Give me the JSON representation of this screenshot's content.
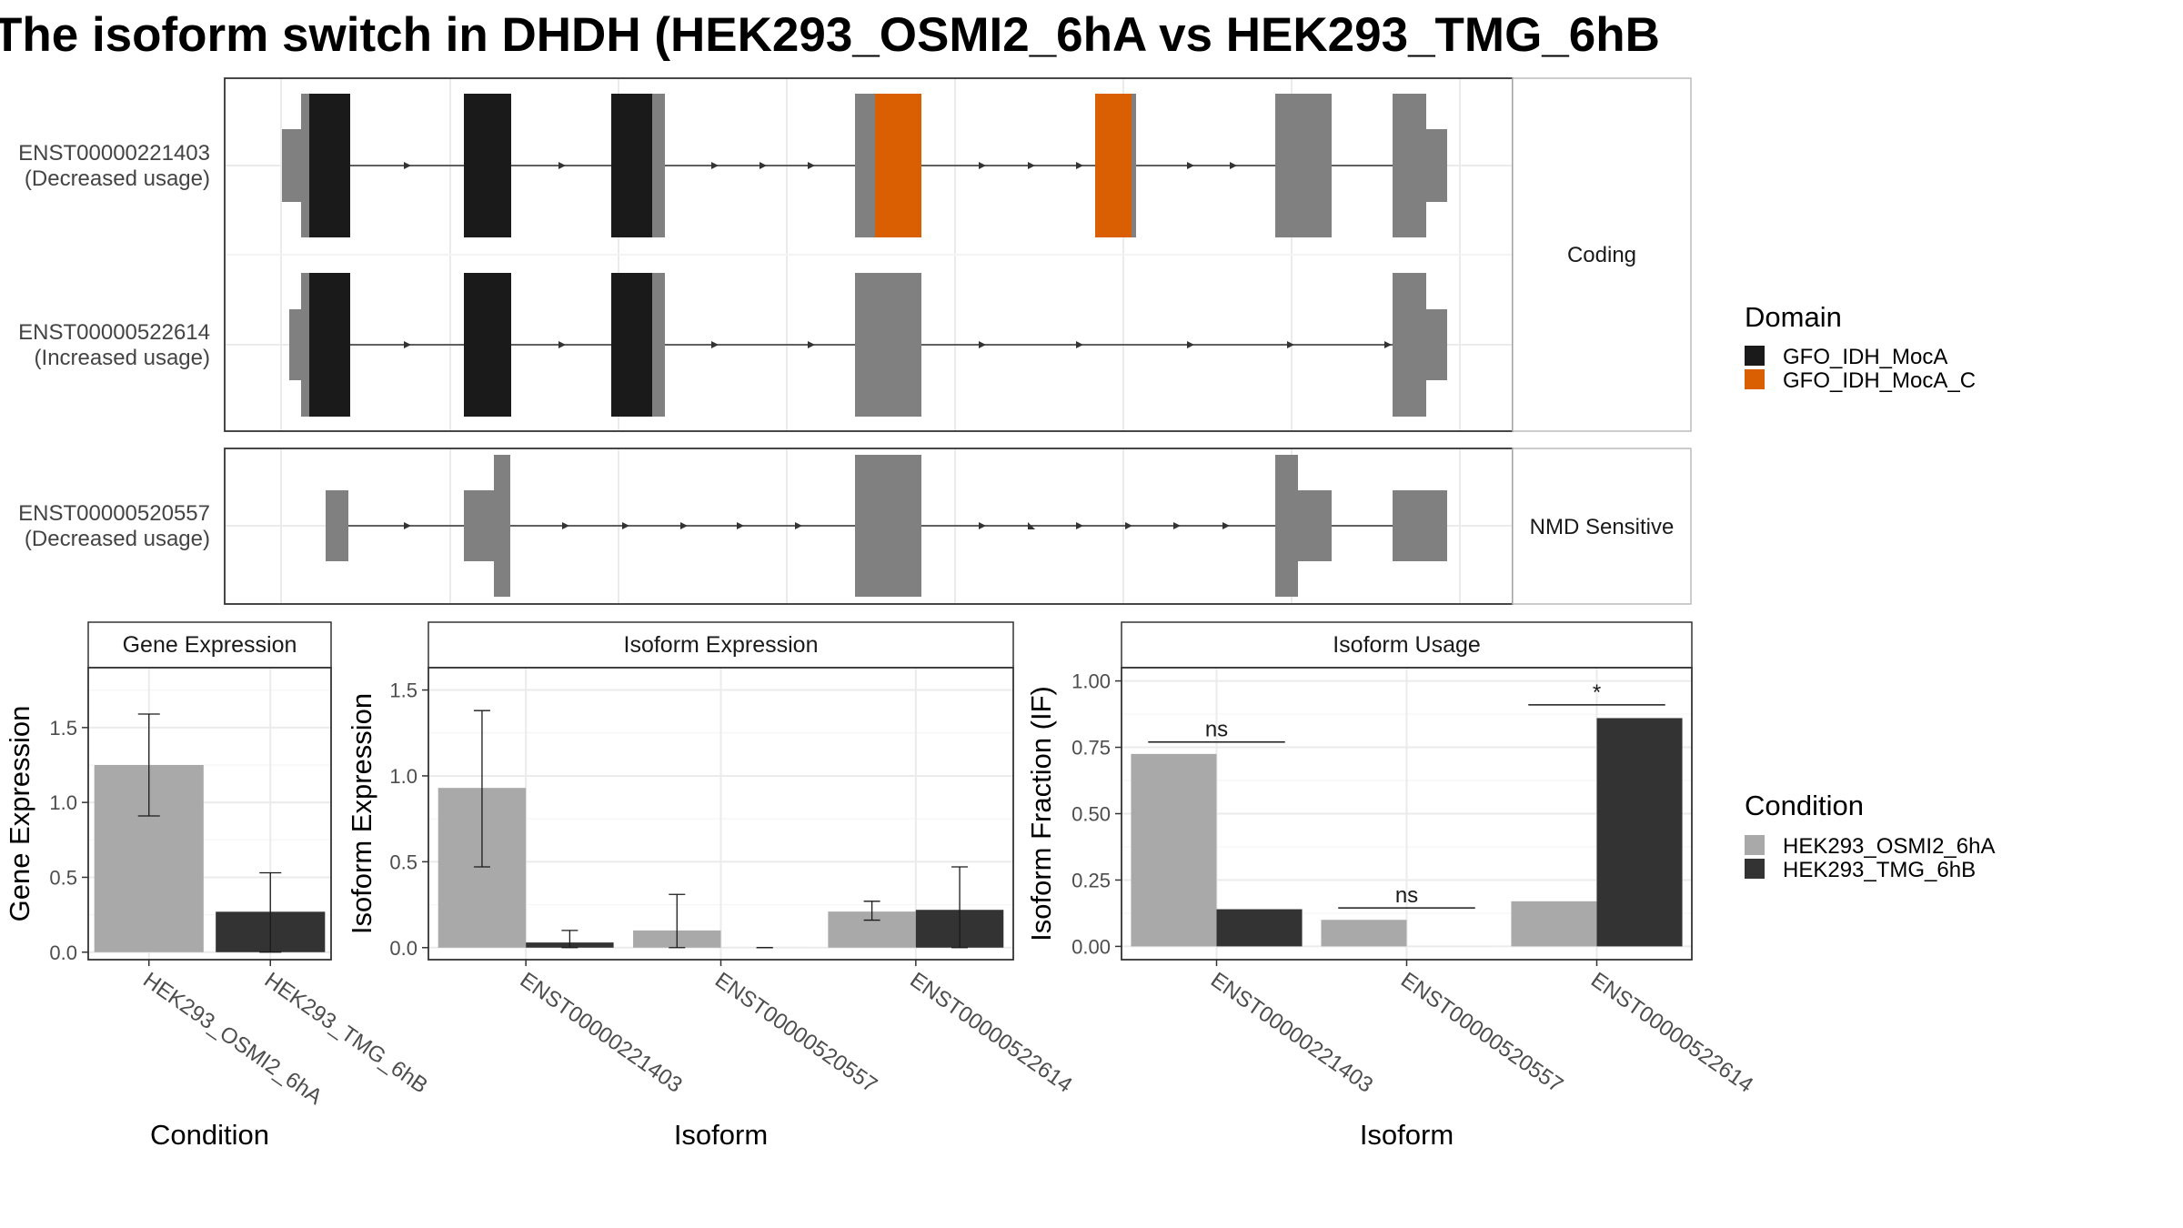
{
  "title": "The isoform switch in DHDH (HEK293_OSMI2_6hA vs HEK293_TMG_6hB",
  "colors": {
    "domain_black": "#1a1a1a",
    "domain_orange": "#d95f02",
    "utr_grey": "#808080",
    "cond_a": "#a9a9a9",
    "cond_b": "#333333",
    "panel_border": "#333333",
    "strip_border": "#bbbbbb",
    "grid": "#ebebeb"
  },
  "structure": {
    "strips": [
      "Coding",
      "NMD Sensitive"
    ],
    "transcripts": [
      {
        "id": "ENST00000221403",
        "usage": "(Decreased usage)",
        "group": "Coding"
      },
      {
        "id": "ENST00000522614",
        "usage": "(Increased usage)",
        "group": "Coding"
      },
      {
        "id": "ENST00000520557",
        "usage": "(Decreased usage)",
        "group": "NMD Sensitive"
      }
    ]
  },
  "legends": {
    "domain": {
      "title": "Domain",
      "items": [
        {
          "label": "GFO_IDH_MocA",
          "color": "#1a1a1a"
        },
        {
          "label": "GFO_IDH_MocA_C",
          "color": "#d95f02"
        }
      ]
    },
    "condition": {
      "title": "Condition",
      "items": [
        {
          "label": "HEK293_OSMI2_6hA",
          "color": "#a9a9a9"
        },
        {
          "label": "HEK293_TMG_6hB",
          "color": "#333333"
        }
      ]
    }
  },
  "chart_data": [
    {
      "type": "bar",
      "title": "Gene Expression",
      "xlabel": "Condition",
      "ylabel": "Gene Expression",
      "ylim": [
        -0.05,
        1.9
      ],
      "yticks": [
        0.0,
        0.5,
        1.0,
        1.5
      ],
      "ytick_labels": [
        "0.0",
        "0.5",
        "1.0",
        "1.5"
      ],
      "categories": [
        "HEK293_OSMI2_6hA",
        "HEK293_TMG_6hB"
      ],
      "values": [
        1.25,
        0.27
      ],
      "err_low": [
        0.91,
        0.0
      ],
      "err_high": [
        1.59,
        0.53
      ]
    },
    {
      "type": "bar",
      "title": "Isoform Expression",
      "xlabel": "Isoform",
      "ylabel": "Isoform Expression",
      "ylim": [
        -0.07,
        1.63
      ],
      "yticks": [
        0.0,
        0.5,
        1.0,
        1.5
      ],
      "ytick_labels": [
        "0.0",
        "0.5",
        "1.0",
        "1.5"
      ],
      "categories": [
        "ENST00000221403",
        "ENST00000520557",
        "ENST00000522614"
      ],
      "series": [
        {
          "name": "HEK293_OSMI2_6hA",
          "values": [
            0.93,
            0.1,
            0.21
          ],
          "err_low": [
            0.47,
            0.0,
            0.16
          ],
          "err_high": [
            1.38,
            0.31,
            0.27
          ]
        },
        {
          "name": "HEK293_TMG_6hB",
          "values": [
            0.03,
            0.0,
            0.22
          ],
          "err_low": [
            0.0,
            0.0,
            0.0
          ],
          "err_high": [
            0.1,
            0.0,
            0.47
          ]
        }
      ]
    },
    {
      "type": "bar",
      "title": "Isoform Usage",
      "xlabel": "Isoform",
      "ylabel": "Isoform Fraction (IF)",
      "ylim": [
        -0.05,
        1.05
      ],
      "yticks": [
        0.0,
        0.25,
        0.5,
        0.75,
        1.0
      ],
      "ytick_labels": [
        "0.00",
        "0.25",
        "0.50",
        "0.75",
        "1.00"
      ],
      "categories": [
        "ENST00000221403",
        "ENST00000520557",
        "ENST00000522614"
      ],
      "series": [
        {
          "name": "HEK293_OSMI2_6hA",
          "values": [
            0.725,
            0.1,
            0.17
          ]
        },
        {
          "name": "HEK293_TMG_6hB",
          "values": [
            0.14,
            0.0,
            0.86
          ]
        }
      ],
      "significance": [
        {
          "category": "ENST00000221403",
          "label": "ns",
          "y": 0.77
        },
        {
          "category": "ENST00000520557",
          "label": "ns",
          "y": 0.145
        },
        {
          "category": "ENST00000522614",
          "label": "*",
          "y": 0.91
        }
      ]
    }
  ]
}
